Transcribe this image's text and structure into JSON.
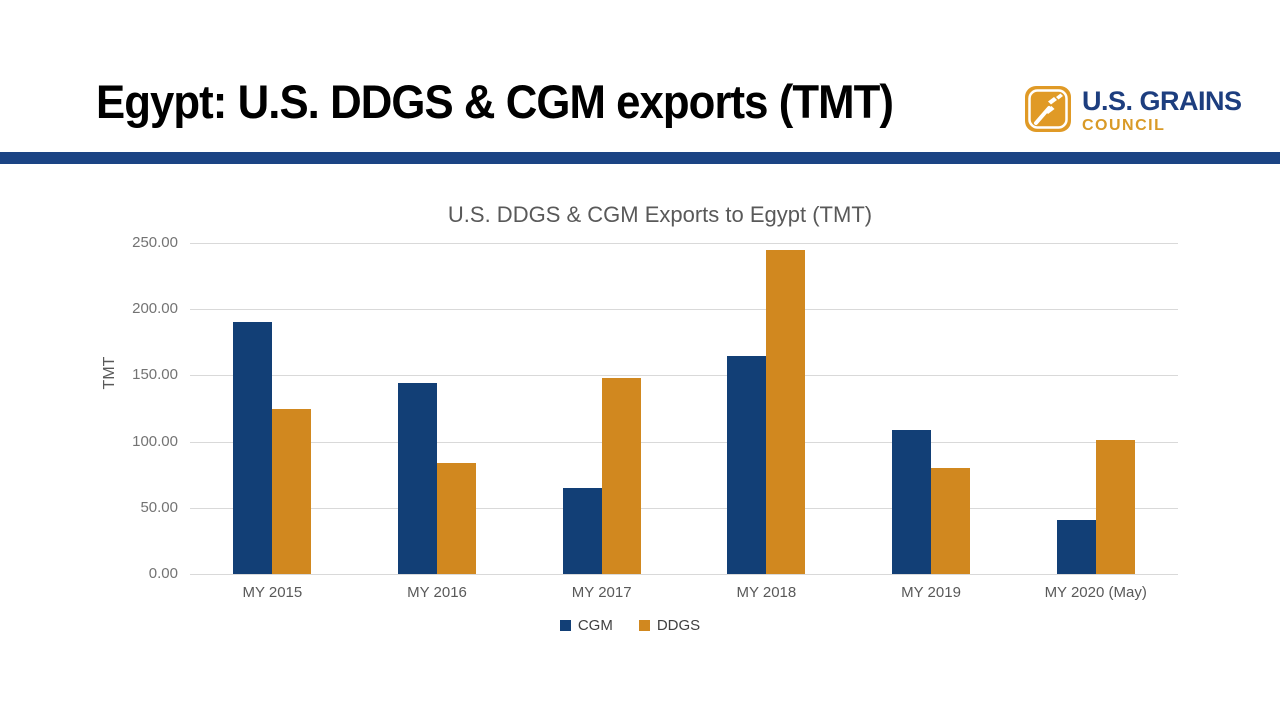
{
  "header": {
    "title": "Egypt: U.S. DDGS & CGM exports (TMT)",
    "logo": {
      "name": "U.S. Grains Council",
      "line1": "U.S. GRAINS",
      "line2": "COUNCIL",
      "navy": "#1d3e7f",
      "gold": "#d99a27",
      "icon_gold": "#e09a26"
    },
    "divider_color": "#1b4484"
  },
  "chart_data": {
    "type": "bar",
    "title": "U.S. DDGS & CGM Exports to Egypt (TMT)",
    "xlabel": "",
    "ylabel": "TMT",
    "categories": [
      "MY 2015",
      "MY 2016",
      "MY 2017",
      "MY 2018",
      "MY 2019",
      "MY 2020 (May)"
    ],
    "series": [
      {
        "name": "CGM",
        "color": "#123f76",
        "values": [
          190,
          144,
          65,
          165,
          109,
          41
        ]
      },
      {
        "name": "DDGS",
        "color": "#d1881f",
        "values": [
          125,
          84,
          148,
          245,
          80,
          101
        ]
      }
    ],
    "ylim": [
      0,
      250
    ],
    "ytick_step": 50,
    "yticks": [
      "0.00",
      "50.00",
      "100.00",
      "150.00",
      "200.00",
      "250.00"
    ],
    "grid": true,
    "grid_color": "#d9d9d9",
    "legend_position": "bottom"
  }
}
